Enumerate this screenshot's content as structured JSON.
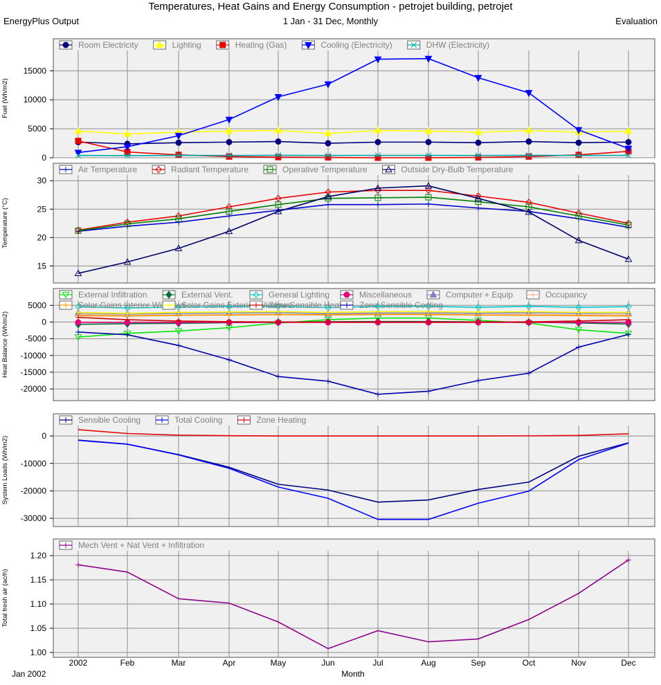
{
  "header": {
    "title": "Temperatures, Heat Gains and Energy Consumption - petrojet building, petrojet",
    "left": "EnergyPlus Output",
    "center": "1 Jan - 31 Dec, Monthly",
    "right": "Evaluation"
  },
  "footer": {
    "start_label": "Jan 2002",
    "xlabel": "Month"
  },
  "colors": {
    "plot_bg": "#eff0ef",
    "grid": "#8c8c8c",
    "legend_text": "#808080"
  },
  "chart_data": [
    {
      "type": "line",
      "ylabel": "Fuel (Wh/m2)",
      "ylim": [
        0,
        18500
      ],
      "yticks": [
        0,
        5000,
        10000,
        15000
      ],
      "ytick_labels": [
        "0",
        "5000",
        "10000",
        "15000"
      ],
      "categories": [
        "2002",
        "Feb",
        "Mar",
        "Apr",
        "May",
        "Jun",
        "Jul",
        "Aug",
        "Sep",
        "Oct",
        "Nov",
        "Dec"
      ],
      "legend_rows": [
        [
          "Room Electricity",
          "Lighting",
          "Heating (Gas)",
          "Cooling (Electricity)",
          "DHW (Electricity)"
        ]
      ],
      "series": [
        {
          "name": "Room Electricity",
          "color": "#00007f",
          "marker": "circle",
          "values": [
            2700,
            2400,
            2600,
            2700,
            2800,
            2500,
            2700,
            2700,
            2600,
            2800,
            2600,
            2700
          ]
        },
        {
          "name": "Lighting",
          "color": "#ffff00",
          "marker": "triangle-up",
          "values": [
            4600,
            4100,
            4400,
            4600,
            4700,
            4200,
            4700,
            4600,
            4400,
            4700,
            4400,
            4600
          ]
        },
        {
          "name": "Heating (Gas)",
          "color": "#e60000",
          "marker": "square",
          "values": [
            2900,
            1000,
            500,
            200,
            100,
            50,
            0,
            0,
            50,
            200,
            500,
            1100
          ]
        },
        {
          "name": "Cooling (Electricity)",
          "color": "#0000ff",
          "marker": "triangle-down",
          "values": [
            900,
            1900,
            3800,
            6600,
            10500,
            12700,
            17000,
            17100,
            13800,
            11200,
            4800,
            1600
          ]
        },
        {
          "name": "DHW (Electricity)",
          "color": "#00a8a8",
          "marker": "x",
          "values": [
            400,
            370,
            410,
            400,
            420,
            400,
            410,
            410,
            400,
            420,
            400,
            410
          ]
        }
      ]
    },
    {
      "type": "line",
      "ylabel": "Temperature (°C)",
      "ylim": [
        12,
        31
      ],
      "yticks": [
        15,
        20,
        25,
        30
      ],
      "ytick_labels": [
        "15",
        "20",
        "25",
        "30"
      ],
      "categories": [
        "2002",
        "Feb",
        "Mar",
        "Apr",
        "May",
        "Jun",
        "Jul",
        "Aug",
        "Sep",
        "Oct",
        "Nov",
        "Dec"
      ],
      "legend_rows": [
        [
          "Air Temperature",
          "Radiant Temperature",
          "Operative Temperature",
          "Outside Dry-Bulb Temperature"
        ]
      ],
      "series": [
        {
          "name": "Air Temperature",
          "color": "#0000cc",
          "marker": "plus",
          "values": [
            21.1,
            22.0,
            22.7,
            23.8,
            24.8,
            25.8,
            25.8,
            25.9,
            25.2,
            24.6,
            23.3,
            21.8
          ]
        },
        {
          "name": "Radiant Temperature",
          "color": "#e60000",
          "marker": "diamond-open",
          "values": [
            21.3,
            22.7,
            23.8,
            25.4,
            26.9,
            28.0,
            28.3,
            28.3,
            27.3,
            26.2,
            24.3,
            22.5
          ]
        },
        {
          "name": "Operative Temperature",
          "color": "#007f00",
          "marker": "square-open",
          "values": [
            21.2,
            22.4,
            23.3,
            24.6,
            25.8,
            26.9,
            27.0,
            27.1,
            26.3,
            25.4,
            23.8,
            22.2
          ]
        },
        {
          "name": "Outside Dry-Bulb Temperature",
          "color": "#000066",
          "marker": "triangle-open",
          "values": [
            13.7,
            15.7,
            18.1,
            21.1,
            24.6,
            27.2,
            28.7,
            29.1,
            26.9,
            24.5,
            19.5,
            16.2
          ]
        }
      ]
    },
    {
      "type": "line",
      "ylabel": "Heat Balance (Wh/m2)",
      "ylim": [
        -23500,
        6500
      ],
      "yticks": [
        5000,
        0,
        -5000,
        -10000,
        -15000,
        -20000
      ],
      "ytick_labels": [
        "5000",
        "0",
        "-5000",
        "-10000",
        "-15000",
        "-20000"
      ],
      "categories": [
        "2002",
        "Feb",
        "Mar",
        "Apr",
        "May",
        "Jun",
        "Jul",
        "Aug",
        "Sep",
        "Oct",
        "Nov",
        "Dec"
      ],
      "legend_rows": [
        [
          "External Infiltration",
          "External Vent.",
          "General Lighting",
          "Miscellaneous",
          "Computer + Equip",
          "Occupancy"
        ],
        [
          "Solar Gains Interior Windows",
          "Solar Gains Exterior Windows",
          "Zone Sensible Heating",
          "Zone Sensible Cooling"
        ]
      ],
      "series": [
        {
          "name": "External Infiltration",
          "color": "#00e600",
          "marker": "triangle-down-open",
          "values": [
            -4500,
            -3400,
            -2700,
            -1700,
            -300,
            700,
            1200,
            1200,
            500,
            -300,
            -2300,
            -3400
          ]
        },
        {
          "name": "External Vent.",
          "color": "#00703c",
          "marker": "diamond",
          "values": [
            -700,
            -500,
            -400,
            -200,
            -50,
            100,
            150,
            150,
            50,
            -50,
            -300,
            -600
          ]
        },
        {
          "name": "General Lighting",
          "color": "#00c8c8",
          "marker": "diamond-open",
          "values": [
            4600,
            4200,
            4500,
            4600,
            4700,
            4300,
            4700,
            4700,
            4400,
            4700,
            4400,
            4600
          ]
        },
        {
          "name": "Miscellaneous",
          "color": "#e6007e",
          "marker": "circle",
          "values": [
            -100,
            -100,
            -100,
            -100,
            -100,
            -100,
            -100,
            -100,
            -100,
            -100,
            -100,
            -100
          ]
        },
        {
          "name": "Computer + Equip",
          "color": "#8080c0",
          "marker": "triangle-up",
          "values": [
            2700,
            2400,
            2600,
            2700,
            2800,
            2500,
            2700,
            2700,
            2600,
            2800,
            2600,
            2700
          ]
        },
        {
          "name": "Occupancy",
          "color": "#f0b090",
          "marker": "plus",
          "values": [
            2200,
            2000,
            2100,
            2200,
            2300,
            2100,
            2200,
            2200,
            2100,
            2300,
            2100,
            2200
          ]
        },
        {
          "name": "Solar Gains Interior Windows",
          "color": "#ff9900",
          "marker": "plus",
          "values": [
            1900,
            1800,
            2000,
            2100,
            2200,
            2200,
            2300,
            2300,
            2100,
            2000,
            1900,
            1800
          ]
        },
        {
          "name": "Solar Gains Exterior Windows",
          "color": "#ffff00",
          "marker": "plus",
          "values": [
            2900,
            2600,
            2900,
            3000,
            3100,
            2900,
            3100,
            3100,
            3000,
            3100,
            2900,
            2900
          ]
        },
        {
          "name": "Zone Sensible Heating",
          "color": "#cc0000",
          "marker": "plus",
          "values": [
            1400,
            700,
            300,
            100,
            0,
            0,
            0,
            0,
            0,
            50,
            300,
            700
          ]
        },
        {
          "name": "Zone Sensible Cooling",
          "color": "#0000aa",
          "marker": "plus",
          "values": [
            -3000,
            -3800,
            -7000,
            -11300,
            -16300,
            -17700,
            -21600,
            -20700,
            -17500,
            -15300,
            -7500,
            -3700
          ]
        }
      ]
    },
    {
      "type": "line",
      "ylabel": "System Loads (Wh/m2)",
      "ylim": [
        -33000,
        3800
      ],
      "yticks": [
        0,
        -10000,
        -20000,
        -30000
      ],
      "ytick_labels": [
        "0",
        "-10000",
        "-20000",
        "-30000"
      ],
      "categories": [
        "2002",
        "Feb",
        "Mar",
        "Apr",
        "May",
        "Jun",
        "Jul",
        "Aug",
        "Sep",
        "Oct",
        "Nov",
        "Dec"
      ],
      "legend_rows": [
        [
          "Sensible Cooling",
          "Total Cooling",
          "Zone Heating"
        ]
      ],
      "series": [
        {
          "name": "Sensible Cooling",
          "color": "#000080",
          "marker": "none",
          "values": [
            -1500,
            -3000,
            -6800,
            -11400,
            -17600,
            -19700,
            -24100,
            -23300,
            -19500,
            -16800,
            -7400,
            -2500
          ]
        },
        {
          "name": "Total Cooling",
          "color": "#0000ff",
          "marker": "none",
          "values": [
            -1600,
            -3000,
            -6900,
            -11800,
            -18600,
            -22700,
            -30400,
            -30400,
            -24500,
            -20100,
            -8600,
            -2600
          ]
        },
        {
          "name": "Zone Heating",
          "color": "#e60000",
          "marker": "none",
          "values": [
            2300,
            900,
            300,
            100,
            0,
            0,
            0,
            0,
            0,
            50,
            200,
            800
          ]
        }
      ]
    },
    {
      "type": "line",
      "ylabel": "Total fresh air (ac/h)",
      "ylim": [
        0.99,
        1.21
      ],
      "yticks": [
        1.0,
        1.05,
        1.1,
        1.15,
        1.2
      ],
      "ytick_labels": [
        "1.00",
        "1.05",
        "1.10",
        "1.15",
        "1.20"
      ],
      "categories": [
        "2002",
        "Feb",
        "Mar",
        "Apr",
        "May",
        "Jun",
        "Jul",
        "Aug",
        "Sep",
        "Oct",
        "Nov",
        "Dec"
      ],
      "legend_rows": [
        [
          "Mech Vent + Nat Vent + Infiltration"
        ]
      ],
      "series": [
        {
          "name": "Mech Vent + Nat Vent + Infiltration",
          "color": "#8b008b",
          "marker": "plus-end",
          "values": [
            1.181,
            1.166,
            1.111,
            1.102,
            1.063,
            1.008,
            1.045,
            1.022,
            1.028,
            1.068,
            1.122,
            1.191
          ]
        }
      ]
    }
  ]
}
